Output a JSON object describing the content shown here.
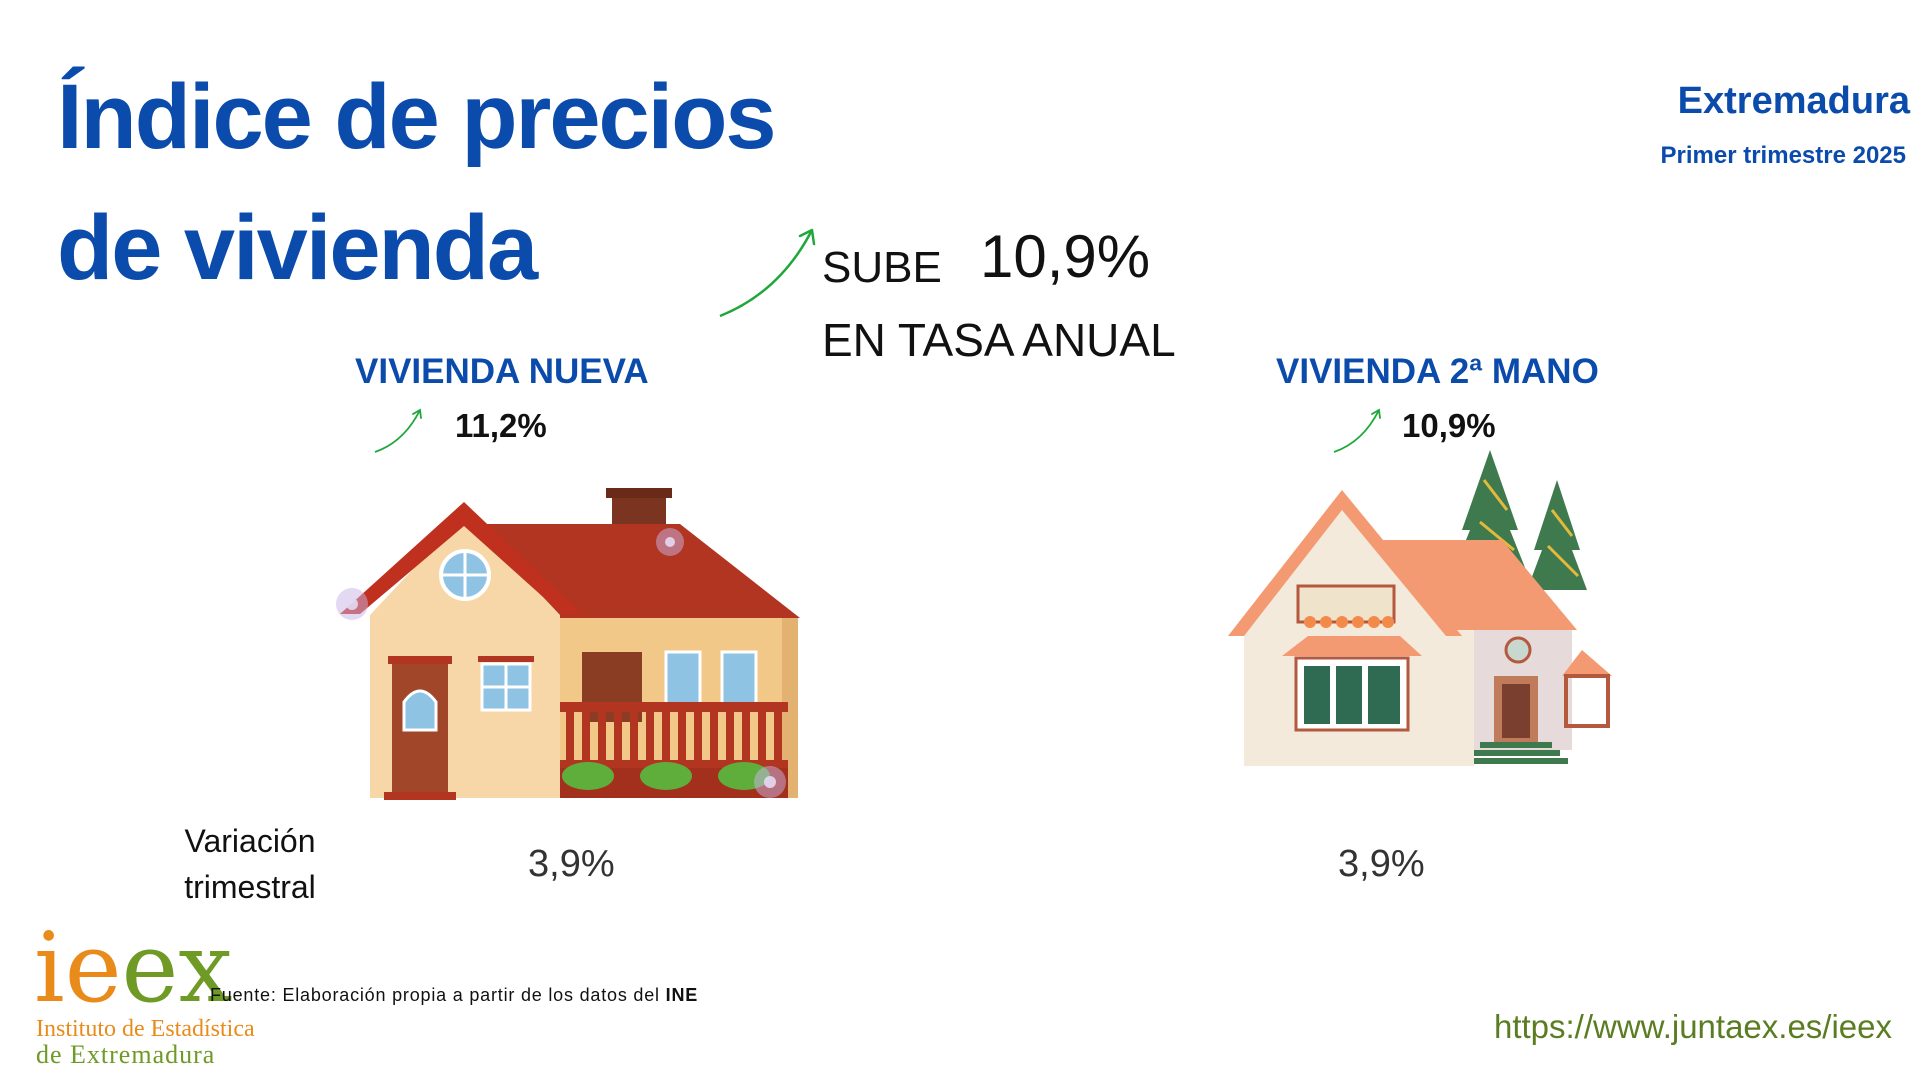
{
  "header": {
    "title_line1": "Índice de precios",
    "title_line2": "de vivienda",
    "region": "Extremadura",
    "period": "Primer trimestre 2025"
  },
  "headline": {
    "verb": "SUBE",
    "value": "10,9%",
    "caption": "EN TASA ANUAL",
    "trend_icon": "arrow-up-right-icon",
    "trend_color": "#1ea83c"
  },
  "categories": [
    {
      "label": "VIVIENDA NUEVA",
      "annual_change": "11,2%",
      "quarterly_change": "3,9%",
      "icon": "new-house-icon"
    },
    {
      "label": "VIVIENDA 2ª MANO",
      "annual_change": "10,9%",
      "quarterly_change": "3,9%",
      "icon": "used-house-icon"
    }
  ],
  "quarterly_label_line1": "Variación",
  "quarterly_label_line2": "trimestral",
  "footer": {
    "source_prefix": "Fuente: Elaboración propia a partir de los datos del ",
    "source_org": "INE",
    "url": "https://www.juntaex.es/ieex",
    "logo_text": "ieex",
    "logo_line1": "Instituto de Estadística",
    "logo_line2": "de Extremadura"
  },
  "colors": {
    "title_blue": "#0a4bab",
    "logo_orange": "#e98b1b",
    "logo_green": "#6f9a25"
  }
}
